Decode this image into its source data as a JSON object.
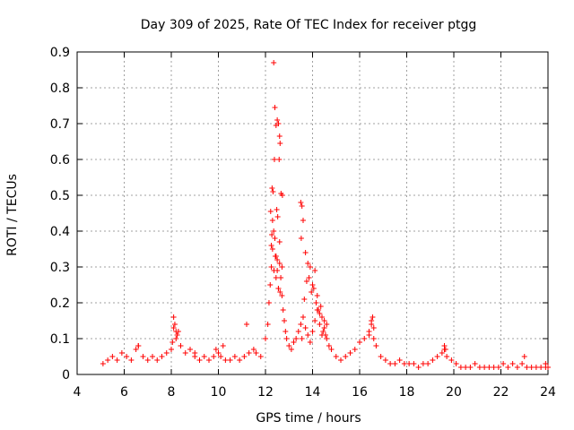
{
  "chart_data": {
    "type": "scatter",
    "title": "Day 309 of 2025, Rate Of TEC Index for receiver ptgg",
    "xlabel": "GPS time / hours",
    "ylabel": "ROTI / TECUs",
    "xlim": [
      4,
      24
    ],
    "ylim": [
      0,
      0.9
    ],
    "xticks": [
      "4",
      "6",
      "8",
      "10",
      "12",
      "14",
      "16",
      "18",
      "20",
      "22",
      "24"
    ],
    "yticks": [
      "0",
      "0.1",
      "0.2",
      "0.3",
      "0.4",
      "0.5",
      "0.6",
      "0.7",
      "0.8",
      "0.9"
    ],
    "grid": true,
    "marker": "+",
    "color": "#ff0000",
    "series": [
      {
        "name": "",
        "x": [
          5.1,
          5.3,
          5.5,
          5.7,
          5.9,
          6.1,
          6.3,
          6.5,
          6.6,
          6.8,
          7.0,
          7.2,
          7.4,
          7.6,
          7.8,
          8.0,
          8.05,
          8.1,
          8.2,
          8.3,
          8.4,
          8.6,
          8.8,
          9.0,
          9.2,
          9.4,
          9.6,
          9.8,
          9.9,
          10.0,
          10.1,
          10.3,
          10.5,
          10.7,
          10.9,
          11.1,
          11.3,
          11.5,
          11.6,
          11.8,
          12.0,
          12.1,
          12.15,
          12.2,
          12.25,
          12.3,
          12.35,
          12.4,
          12.45,
          12.5,
          12.55,
          12.6,
          12.65,
          12.7,
          12.75,
          12.8,
          12.85,
          12.9,
          13.0,
          13.1,
          13.2,
          13.3,
          13.4,
          13.5,
          13.55,
          13.6,
          13.7,
          13.8,
          13.9,
          14.0,
          14.1,
          14.2,
          14.3,
          14.4,
          14.5,
          14.6,
          14.7,
          14.8,
          15.0,
          15.2,
          15.4,
          15.6,
          15.8,
          16.0,
          16.2,
          16.4,
          16.5,
          16.6,
          16.7,
          16.9,
          17.1,
          17.3,
          17.5,
          17.7,
          17.9,
          18.1,
          18.3,
          18.5,
          18.7,
          18.9,
          19.1,
          19.3,
          19.5,
          19.6,
          19.7,
          19.9,
          20.1,
          20.3,
          20.5,
          20.7,
          20.9,
          21.1,
          21.3,
          21.5,
          21.7,
          21.9,
          22.1,
          22.3,
          22.5,
          22.7,
          22.9,
          23.1,
          23.3,
          23.5,
          23.7,
          23.9,
          24.0,
          12.35,
          12.4,
          12.45,
          12.5,
          12.55,
          12.6,
          12.62,
          12.38,
          12.28,
          12.32,
          12.22,
          12.48,
          12.52,
          12.58,
          12.66,
          12.72,
          12.3,
          12.42,
          12.27,
          12.5,
          12.6,
          12.7,
          12.45,
          12.25,
          12.36,
          12.55,
          12.62,
          13.5,
          13.55,
          13.6,
          13.52,
          13.7,
          13.75,
          13.8,
          13.9,
          14.0,
          14.05,
          14.1,
          14.15,
          14.2,
          14.3,
          14.4,
          14.5,
          14.6,
          14.35,
          14.45,
          14.55,
          13.65,
          13.85,
          13.95,
          14.25,
          8.1,
          8.15,
          8.2,
          8.25,
          16.5,
          16.55,
          16.6,
          16.4,
          19.6,
          19.65,
          11.2,
          10.2,
          6.6,
          9.0,
          23.0,
          23.9
        ],
        "y": [
          0.03,
          0.04,
          0.05,
          0.04,
          0.06,
          0.05,
          0.04,
          0.07,
          0.08,
          0.05,
          0.04,
          0.05,
          0.04,
          0.05,
          0.06,
          0.07,
          0.09,
          0.13,
          0.1,
          0.12,
          0.08,
          0.06,
          0.07,
          0.05,
          0.04,
          0.05,
          0.04,
          0.05,
          0.07,
          0.06,
          0.05,
          0.04,
          0.04,
          0.05,
          0.04,
          0.05,
          0.06,
          0.07,
          0.06,
          0.05,
          0.1,
          0.14,
          0.2,
          0.25,
          0.3,
          0.35,
          0.4,
          0.38,
          0.33,
          0.29,
          0.24,
          0.31,
          0.27,
          0.22,
          0.18,
          0.15,
          0.12,
          0.1,
          0.08,
          0.07,
          0.09,
          0.1,
          0.12,
          0.14,
          0.1,
          0.16,
          0.13,
          0.11,
          0.09,
          0.12,
          0.15,
          0.18,
          0.14,
          0.11,
          0.13,
          0.1,
          0.08,
          0.07,
          0.05,
          0.04,
          0.05,
          0.06,
          0.07,
          0.09,
          0.1,
          0.12,
          0.14,
          0.1,
          0.08,
          0.05,
          0.04,
          0.03,
          0.03,
          0.04,
          0.03,
          0.03,
          0.03,
          0.02,
          0.03,
          0.03,
          0.04,
          0.05,
          0.06,
          0.07,
          0.05,
          0.04,
          0.03,
          0.02,
          0.02,
          0.02,
          0.03,
          0.02,
          0.02,
          0.02,
          0.02,
          0.02,
          0.03,
          0.02,
          0.03,
          0.02,
          0.03,
          0.02,
          0.02,
          0.02,
          0.02,
          0.02,
          0.02,
          0.87,
          0.745,
          0.695,
          0.71,
          0.7,
          0.665,
          0.645,
          0.6,
          0.52,
          0.51,
          0.455,
          0.46,
          0.44,
          0.6,
          0.505,
          0.5,
          0.43,
          0.33,
          0.39,
          0.32,
          0.37,
          0.3,
          0.27,
          0.36,
          0.29,
          0.24,
          0.23,
          0.48,
          0.47,
          0.43,
          0.38,
          0.34,
          0.26,
          0.31,
          0.3,
          0.25,
          0.24,
          0.29,
          0.2,
          0.22,
          0.17,
          0.16,
          0.15,
          0.14,
          0.19,
          0.12,
          0.11,
          0.21,
          0.27,
          0.23,
          0.18,
          0.16,
          0.14,
          0.12,
          0.11,
          0.15,
          0.16,
          0.13,
          0.11,
          0.08,
          0.07,
          0.14,
          0.08,
          0.08,
          0.06,
          0.05,
          0.03
        ]
      }
    ]
  }
}
